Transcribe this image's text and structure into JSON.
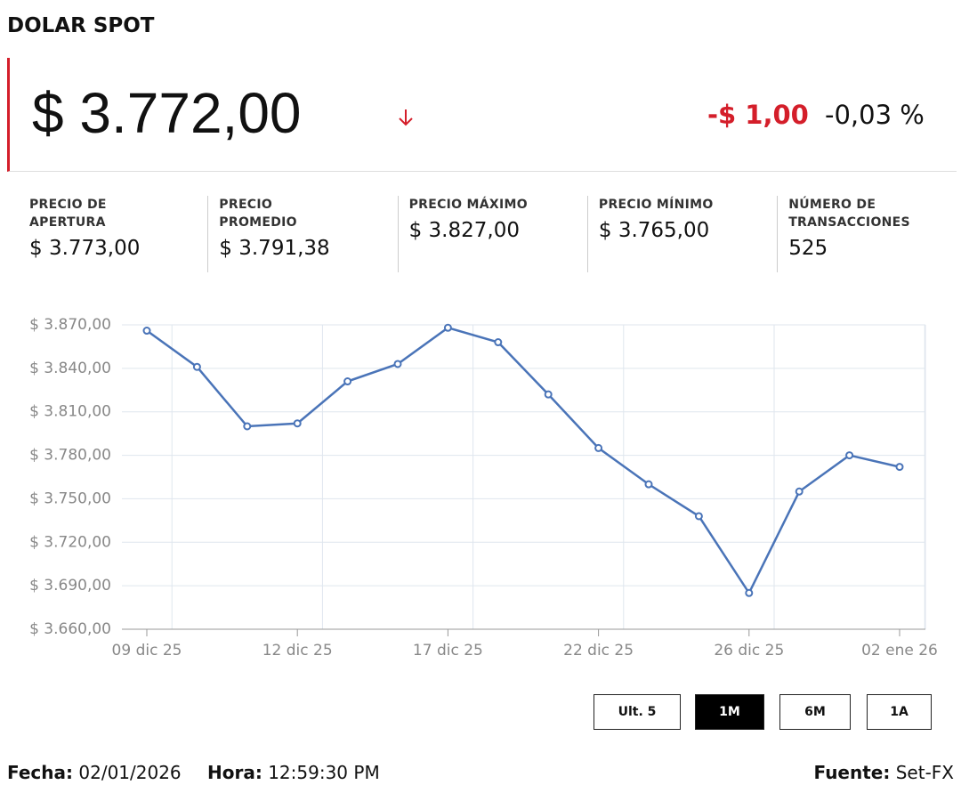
{
  "header": {
    "title": "DOLAR SPOT",
    "price": "$ 3.772,00",
    "change": "-$ 1,00",
    "change_pct": "-0,03 %"
  },
  "stats": [
    {
      "label": "PRECIO DE\nAPERTURA",
      "value": "$ 3.773,00"
    },
    {
      "label": "PRECIO\nPROMEDIO",
      "value": "$ 3.791,38"
    },
    {
      "label": "PRECIO MÁXIMO",
      "value": "$ 3.827,00"
    },
    {
      "label": "PRECIO MÍNIMO",
      "value": "$ 3.765,00"
    },
    {
      "label": "NÚMERO DE\nTRANSACCIONES",
      "value": "525"
    }
  ],
  "chart_data": {
    "type": "line",
    "categories": [
      "09 dic 25",
      null,
      null,
      "12 dic 25",
      null,
      null,
      "17 dic 25",
      null,
      null,
      "22 dic 25",
      null,
      null,
      "26 dic 25",
      null,
      null,
      "02 ene 26"
    ],
    "values": [
      3866,
      3841,
      3800,
      3802,
      3831,
      3843,
      3868,
      3858,
      3822,
      3785,
      3760,
      3738,
      3685,
      3755,
      3780,
      3772
    ],
    "color": "#4a74b8",
    "ylim": [
      3660,
      3870
    ],
    "yticks": [
      {
        "value": 3660,
        "label": "$ 3.660,00"
      },
      {
        "value": 3690,
        "label": "$ 3.690,00"
      },
      {
        "value": 3720,
        "label": "$ 3.720,00"
      },
      {
        "value": 3750,
        "label": "$ 3.750,00"
      },
      {
        "value": 3780,
        "label": "$ 3.780,00"
      },
      {
        "value": 3810,
        "label": "$ 3.810,00"
      },
      {
        "value": 3840,
        "label": "$ 3.840,00"
      },
      {
        "value": 3870,
        "label": "$ 3.870,00"
      }
    ],
    "grid": true
  },
  "buttons": [
    {
      "label": "Ult. 5",
      "active": false
    },
    {
      "label": "1M",
      "active": true
    },
    {
      "label": "6M",
      "active": false
    },
    {
      "label": "1A",
      "active": false
    }
  ],
  "footer": {
    "fecha_label": "Fecha:",
    "fecha": "02/01/2026",
    "hora_label": "Hora:",
    "hora": "12:59:30 PM",
    "fuente_label": "Fuente:",
    "fuente": "Set-FX"
  }
}
